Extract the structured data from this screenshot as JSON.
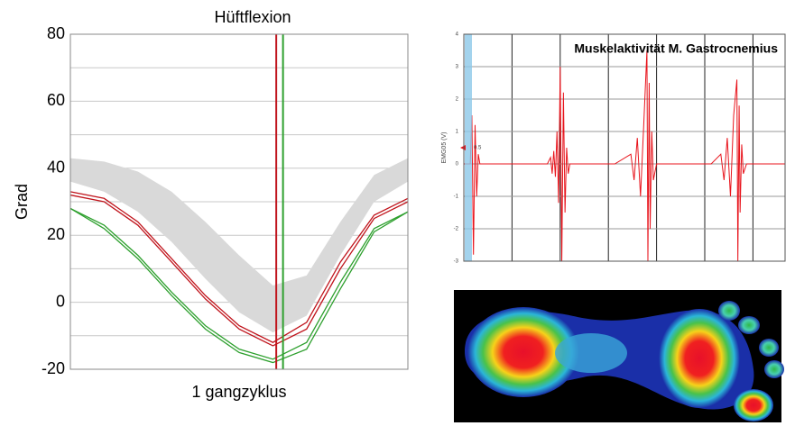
{
  "chart_data": [
    {
      "type": "line",
      "title": "Hüftflexion",
      "y_label": "Grad",
      "x_label": "1 gangzyklus",
      "x": [
        0,
        10,
        20,
        30,
        40,
        50,
        60,
        70,
        80,
        90,
        100
      ],
      "xlim": [
        0,
        100
      ],
      "ylim": [
        -20,
        80
      ],
      "yticks": [
        -20,
        0,
        20,
        40,
        60,
        80
      ],
      "minor_yticks": [
        -10,
        10,
        30,
        50,
        70
      ],
      "grid": true,
      "series": [
        {
          "color": "#d9d9d9",
          "values": [
            43,
            42,
            39,
            33,
            24,
            14,
            5,
            8,
            24,
            38,
            43
          ],
          "lower": [
            36,
            33,
            27,
            18,
            7,
            -3,
            -9,
            -4,
            14,
            30,
            36
          ]
        },
        {
          "color": "#2ea02e",
          "values": [
            28,
            23,
            14,
            3,
            -7,
            -14,
            -17,
            -12,
            6,
            22,
            27
          ]
        },
        {
          "color": "#2ea02e",
          "values": [
            28,
            22,
            13,
            2,
            -8,
            -15,
            -18,
            -14,
            4,
            21,
            27
          ]
        },
        {
          "color": "#c0141c",
          "values": [
            33,
            31,
            24,
            13,
            2,
            -7,
            -12,
            -6,
            12,
            26,
            31
          ]
        },
        {
          "color": "#c0141c",
          "values": [
            32,
            30,
            23,
            12,
            1,
            -8,
            -13,
            -8,
            10,
            25,
            30
          ]
        }
      ],
      "vlines": [
        {
          "x": 61,
          "color": "#c0141c"
        },
        {
          "x": 63,
          "color": "#2ea02e"
        }
      ]
    },
    {
      "type": "line",
      "title": "Muskelaktivität M. Gastrocnemius",
      "y_label": "EMG05 (V)",
      "xlim": [
        0,
        100
      ],
      "xticks": [
        0,
        15,
        30,
        45,
        60,
        75,
        90
      ],
      "ylim": [
        -3,
        4
      ],
      "yticks": [
        -3,
        -2,
        -1,
        0,
        1,
        2,
        3,
        4
      ],
      "grid": true,
      "cursor": {
        "value": 0.5,
        "label": "0.5"
      },
      "x": [
        0,
        2,
        2.5,
        3,
        3.5,
        4,
        4.5,
        5,
        26,
        27,
        27.5,
        28,
        28.5,
        29,
        29.5,
        30,
        30.5,
        31,
        31.5,
        32,
        32.5,
        33,
        47,
        52,
        53,
        54,
        55,
        56,
        57,
        57.3,
        57.7,
        58,
        58.5,
        59,
        60,
        77,
        80,
        81,
        82,
        83,
        84,
        85,
        85.3,
        85.7,
        86,
        86.5,
        87,
        88,
        100
      ],
      "series": [
        {
          "color": "#e8141c",
          "values": [
            0,
            0,
            1.5,
            -2.8,
            1.2,
            -1,
            0.3,
            0,
            0,
            0.2,
            -0.3,
            0.4,
            -0.4,
            1,
            -1.2,
            3,
            -3,
            2.2,
            -1.5,
            0.5,
            -0.3,
            0,
            0,
            0.3,
            -0.5,
            0.8,
            -1,
            1.2,
            3.5,
            -3,
            2.5,
            -2,
            1,
            -0.5,
            0,
            0,
            0.3,
            -0.5,
            0.8,
            -1,
            1.5,
            2.6,
            -3,
            1.8,
            -1.5,
            0.6,
            -0.3,
            0,
            0
          ]
        }
      ]
    }
  ]
}
